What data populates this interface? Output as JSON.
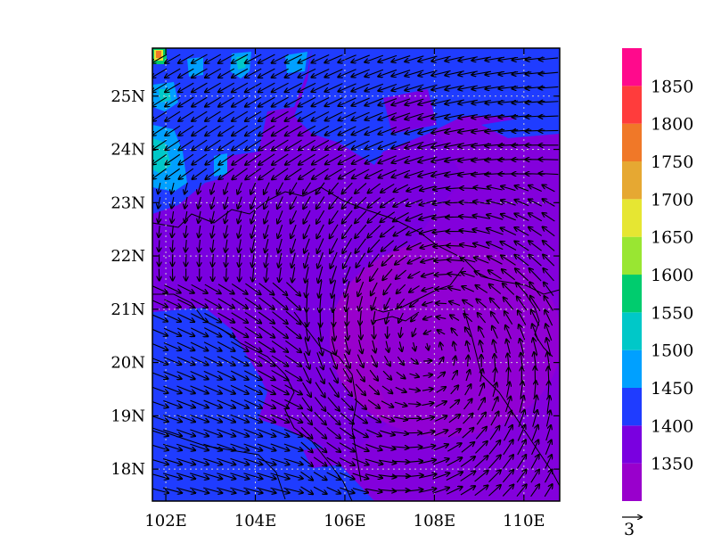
{
  "chart_data": {
    "type": "heatmap",
    "title": "",
    "xlabel": "",
    "ylabel": "",
    "x_range": [
      101.7,
      110.8
    ],
    "y_range": [
      17.4,
      25.9
    ],
    "x_ticks": [
      "102E",
      "104E",
      "106E",
      "108E",
      "110E"
    ],
    "x_tick_values": [
      102,
      104,
      106,
      108,
      110
    ],
    "y_ticks": [
      "18N",
      "19N",
      "20N",
      "21N",
      "22N",
      "23N",
      "24N",
      "25N"
    ],
    "y_tick_values": [
      18,
      19,
      20,
      21,
      22,
      23,
      24,
      25
    ],
    "grid": true,
    "colorbar": {
      "placement": "right",
      "levels": [
        1350,
        1400,
        1450,
        1500,
        1550,
        1600,
        1650,
        1700,
        1750,
        1800,
        1850
      ],
      "labels": [
        "1350",
        "1400",
        "1450",
        "1500",
        "1550",
        "1600",
        "1650",
        "1700",
        "1750",
        "1800",
        "1850"
      ],
      "colors": [
        "#9900cc",
        "#7a00e0",
        "#1f3cff",
        "#00a0ff",
        "#00c8c8",
        "#00cc6e",
        "#99e632",
        "#e6e632",
        "#e6a832",
        "#f07828",
        "#ff3c3c",
        "#ff0a8c"
      ]
    },
    "vector": {
      "reference_label": "3",
      "cyclone_center": [
        107.9,
        20.3
      ]
    },
    "background_color": "#7a00e0"
  }
}
